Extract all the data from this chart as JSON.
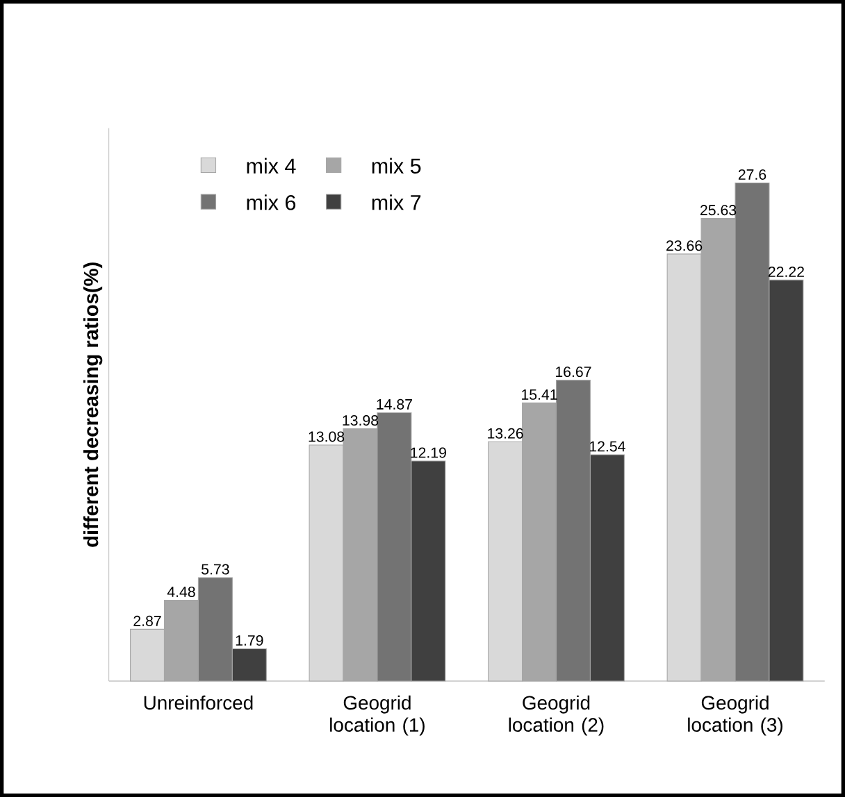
{
  "chart_data": {
    "type": "bar",
    "ylabel": "different decreasing ratios(%)",
    "categories": [
      "Unreinforced",
      "Geogrid location (1)",
      "Geogrid location (2)",
      "Geogrid location (3)"
    ],
    "series": [
      {
        "name": "mix 4",
        "color": "#d9d9d9",
        "values": [
          2.87,
          13.08,
          13.26,
          23.66
        ]
      },
      {
        "name": "mix 5",
        "color": "#a6a6a6",
        "values": [
          4.48,
          13.98,
          15.41,
          25.63
        ]
      },
      {
        "name": "mix 6",
        "color": "#737373",
        "values": [
          5.73,
          14.87,
          16.67,
          27.6
        ]
      },
      {
        "name": "mix 7",
        "color": "#404040",
        "values": [
          1.79,
          12.19,
          12.54,
          22.22
        ]
      }
    ],
    "data_labels": true,
    "legend": "top left"
  }
}
